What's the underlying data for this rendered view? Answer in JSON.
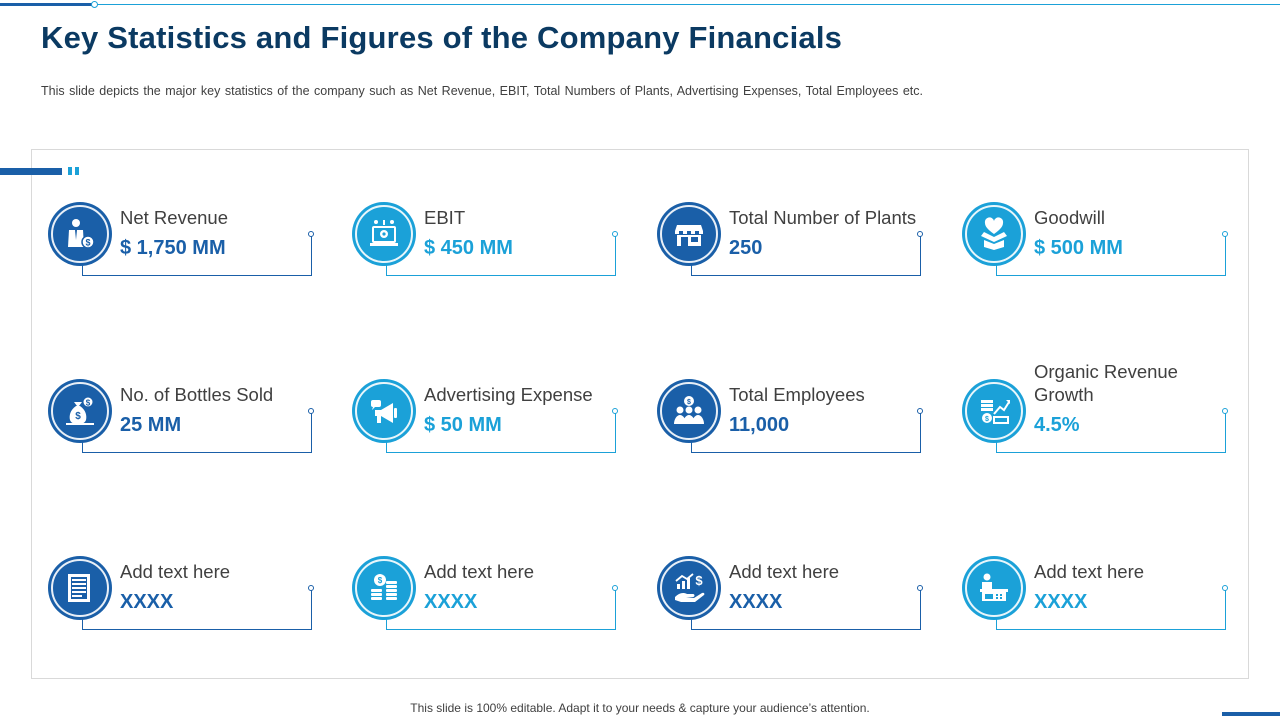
{
  "title": "Key Statistics and Figures of the Company Financials",
  "subtitle": "This slide depicts the major key statistics of the company such as Net Revenue,  EBIT, Total Numbers of Plants, Advertising Expenses, Total Employees etc.",
  "colors": {
    "dark_blue": "#1a5fa8",
    "light_blue": "#1ba1d8",
    "title": "#0b3a62"
  },
  "cards": [
    {
      "label": "Net Revenue",
      "value": "$ 1,750 MM",
      "icon": "businessman-money-icon"
    },
    {
      "label": "EBIT",
      "value": "$ 450 MM",
      "icon": "laptop-gear-icon"
    },
    {
      "label": "Total Number of Plants",
      "value": "250",
      "icon": "store-icon"
    },
    {
      "label": "Goodwill",
      "value": "$ 500 MM",
      "icon": "heart-box-icon"
    },
    {
      "label": "No. of Bottles Sold",
      "value": "25 MM",
      "icon": "money-bag-icon"
    },
    {
      "label": "Advertising Expense",
      "value": "$ 50 MM",
      "icon": "megaphone-icon"
    },
    {
      "label": "Total Employees",
      "value": "11,000",
      "icon": "team-icon"
    },
    {
      "label": "Organic Revenue Growth",
      "value": "4.5%",
      "icon": "growth-chart-icon"
    },
    {
      "label": "Add text here",
      "value": "XXXX",
      "icon": "document-icon"
    },
    {
      "label": "Add text here",
      "value": "XXXX",
      "icon": "coin-stacks-icon"
    },
    {
      "label": "Add text here",
      "value": "XXXX",
      "icon": "hand-chart-icon"
    },
    {
      "label": "Add text here",
      "value": "XXXX",
      "icon": "desk-person-icon"
    }
  ],
  "footer": "This slide is 100% editable. Adapt it to your needs & capture your audience’s attention."
}
